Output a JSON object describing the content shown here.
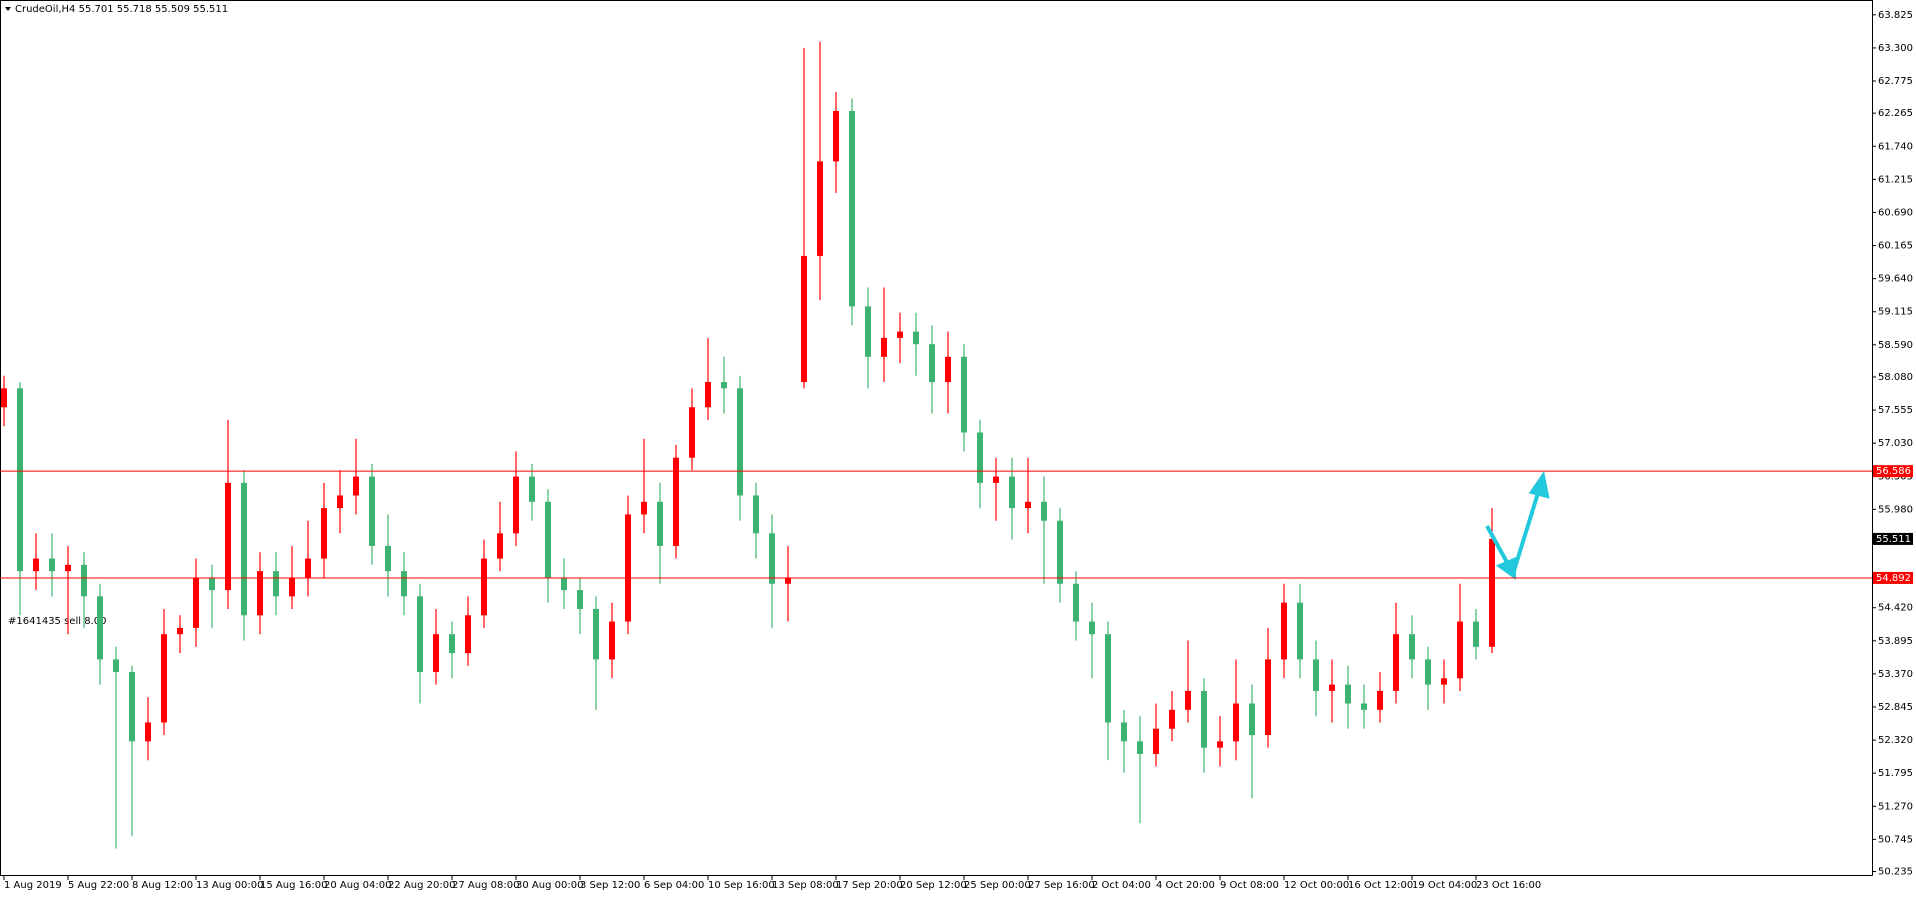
{
  "chart_data": {
    "type": "candlestick",
    "header": "CrudeOil,H4  55.701 55.718 55.509 55.511",
    "annotation": "#1641435 sell 8.00",
    "up_color": "#ff0000",
    "down_color": "#3cb371",
    "ylim": [
      50.18,
      64.06
    ],
    "yticks": [
      63.825,
      {
        "value": 63.3,
        "label": "63.300"
      },
      62.775,
      62.265,
      {
        "value": 61.74,
        "label": "61.740"
      },
      61.215,
      {
        "value": 60.69,
        "label": "60.690"
      },
      60.165,
      {
        "value": 59.64,
        "label": "59.640"
      },
      59.115,
      {
        "value": 58.59,
        "label": "58.590"
      },
      {
        "value": 58.08,
        "label": "58.080"
      },
      57.555,
      {
        "value": 57.03,
        "label": "57.030"
      },
      56.505,
      {
        "value": 55.98,
        "label": "55.980"
      },
      {
        "value": 54.42,
        "label": "54.420"
      },
      53.895,
      {
        "value": 53.37,
        "label": "53.370"
      },
      52.845,
      {
        "value": 52.32,
        "label": "52.320"
      },
      51.795,
      {
        "value": 51.27,
        "label": "51.270"
      },
      50.745,
      50.235
    ],
    "levels": [
      {
        "value": 56.586,
        "color": "#ff0000"
      },
      {
        "value": 54.892,
        "color": "#ff0000"
      }
    ],
    "categories": [
      "1 Aug 2019",
      null,
      null,
      null,
      "5 Aug 22:00",
      null,
      null,
      null,
      "8 Aug 12:00",
      null,
      null,
      null,
      "13 Aug 00:00",
      null,
      null,
      null,
      "15 Aug 16:00",
      null,
      null,
      null,
      "20 Aug 04:00",
      null,
      null,
      null,
      "22 Aug 20:00",
      null,
      null,
      null,
      "27 Aug 08:00",
      null,
      null,
      null,
      "30 Aug 00:00",
      null,
      null,
      null,
      "3 Sep 12:00",
      null,
      null,
      null,
      "6 Sep 04:00",
      null,
      null,
      null,
      "10 Sep 16:00",
      null,
      null,
      null,
      "13 Sep 08:00",
      null,
      null,
      null,
      "17 Sep 20:00",
      null,
      null,
      null,
      "20 Sep 12:00",
      null,
      null,
      null,
      "25 Sep 00:00",
      null,
      null,
      null,
      "27 Sep 16:00",
      null,
      null,
      null,
      "2 Oct 04:00",
      null,
      null,
      null,
      "4 Oct 20:00",
      null,
      null,
      null,
      "9 Oct 08:00",
      null,
      null,
      null,
      "12 Oct 00:00",
      null,
      null,
      null,
      "16 Oct 12:00",
      null,
      null,
      null,
      "19 Oct 04:00",
      null,
      null,
      null,
      "23 Oct 16:00",
      null
    ],
    "open": [
      57.6,
      57.9,
      55.0,
      55.2,
      55.0,
      55.1,
      54.6,
      53.6,
      53.4,
      52.3,
      52.6,
      54.0,
      54.1,
      54.9,
      54.7,
      56.4,
      54.3,
      55.0,
      54.6,
      54.9,
      55.2,
      56.0,
      56.2,
      56.5,
      55.4,
      55.0,
      54.6,
      53.4,
      54.0,
      53.7,
      54.3,
      55.2,
      55.6,
      56.5,
      56.1,
      54.9,
      54.7,
      54.4,
      53.6,
      54.2,
      55.9,
      56.1,
      55.4,
      56.8,
      57.6,
      58.0,
      57.9,
      56.2,
      55.6,
      54.8,
      58.0,
      60.0,
      61.5,
      62.3,
      59.2,
      58.4,
      58.7,
      58.8,
      58.6,
      58.0,
      58.4,
      57.2,
      56.4,
      56.5,
      56.0,
      56.1,
      55.8,
      54.8,
      54.2,
      54.0,
      52.6,
      52.3,
      52.1,
      52.5,
      52.8,
      53.1,
      52.2,
      52.3,
      52.9,
      52.4,
      53.6,
      54.5,
      53.6,
      53.1,
      53.2,
      52.9,
      52.8,
      53.1,
      54.0,
      53.6,
      53.2,
      53.3,
      54.2,
      53.8
    ],
    "high": [
      58.1,
      58.0,
      55.6,
      55.6,
      55.4,
      55.3,
      54.8,
      53.8,
      53.5,
      53.0,
      54.4,
      54.3,
      55.2,
      55.1,
      57.4,
      56.6,
      55.3,
      55.3,
      55.4,
      55.8,
      56.4,
      56.6,
      57.1,
      56.7,
      55.9,
      55.3,
      54.8,
      54.4,
      54.2,
      54.6,
      55.5,
      56.1,
      56.9,
      56.7,
      56.3,
      55.2,
      54.9,
      54.6,
      54.5,
      56.2,
      57.1,
      56.4,
      57.0,
      57.9,
      58.7,
      58.4,
      58.1,
      56.4,
      55.9,
      55.4,
      63.3,
      63.4,
      62.6,
      62.5,
      59.5,
      59.5,
      59.1,
      59.1,
      58.9,
      58.8,
      58.6,
      57.4,
      56.8,
      56.8,
      56.8,
      56.5,
      56.0,
      55.0,
      54.5,
      54.2,
      52.8,
      52.7,
      52.9,
      53.1,
      53.9,
      53.3,
      52.7,
      53.6,
      53.2,
      54.1,
      54.8,
      54.8,
      53.9,
      53.6,
      53.5,
      53.2,
      53.4,
      54.5,
      54.3,
      53.8,
      53.6,
      54.8,
      54.4,
      56.0
    ],
    "low": [
      57.3,
      54.3,
      54.7,
      54.6,
      54.0,
      54.1,
      53.2,
      50.6,
      50.8,
      52.0,
      52.4,
      53.7,
      53.8,
      54.1,
      54.4,
      53.9,
      54.0,
      54.3,
      54.4,
      54.6,
      54.9,
      55.6,
      55.9,
      55.1,
      54.6,
      54.3,
      52.9,
      53.2,
      53.3,
      53.5,
      54.1,
      55.0,
      55.4,
      55.8,
      54.5,
      54.4,
      54.0,
      52.8,
      53.3,
      54.0,
      55.6,
      54.8,
      55.2,
      56.6,
      57.4,
      57.5,
      55.8,
      55.2,
      54.1,
      54.2,
      57.9,
      59.3,
      61.0,
      58.9,
      57.9,
      58.0,
      58.3,
      58.1,
      57.5,
      57.5,
      56.9,
      56.0,
      55.8,
      55.5,
      55.6,
      54.8,
      54.5,
      53.9,
      53.3,
      52.0,
      51.8,
      51.0,
      51.9,
      52.3,
      52.6,
      51.8,
      51.9,
      52.0,
      51.4,
      52.2,
      53.3,
      53.3,
      52.7,
      52.6,
      52.5,
      52.5,
      52.6,
      52.9,
      53.3,
      52.8,
      52.9,
      53.1,
      53.6,
      53.7
    ],
    "close": [
      57.9,
      55.0,
      55.2,
      55.0,
      55.1,
      54.6,
      53.6,
      53.4,
      52.3,
      52.6,
      54.0,
      54.1,
      54.9,
      54.7,
      56.4,
      54.3,
      55.0,
      54.6,
      54.9,
      55.2,
      56.0,
      56.2,
      56.5,
      55.4,
      55.0,
      54.6,
      53.4,
      54.0,
      53.7,
      54.3,
      55.2,
      55.6,
      56.5,
      56.1,
      54.9,
      54.7,
      54.4,
      53.6,
      54.2,
      55.9,
      56.1,
      55.4,
      56.8,
      57.6,
      58.0,
      57.9,
      56.2,
      55.6,
      54.8,
      54.9,
      60.0,
      61.5,
      62.3,
      59.2,
      58.4,
      58.7,
      58.8,
      58.6,
      58.0,
      58.4,
      57.2,
      56.4,
      56.5,
      56.0,
      56.1,
      55.8,
      54.8,
      54.2,
      54.0,
      52.6,
      52.3,
      52.1,
      52.5,
      52.8,
      53.1,
      52.2,
      52.3,
      52.9,
      52.4,
      53.6,
      54.5,
      53.6,
      53.1,
      53.2,
      52.9,
      52.8,
      53.1,
      54.0,
      53.6,
      53.2,
      53.3,
      54.2,
      53.8,
      55.511
    ]
  }
}
